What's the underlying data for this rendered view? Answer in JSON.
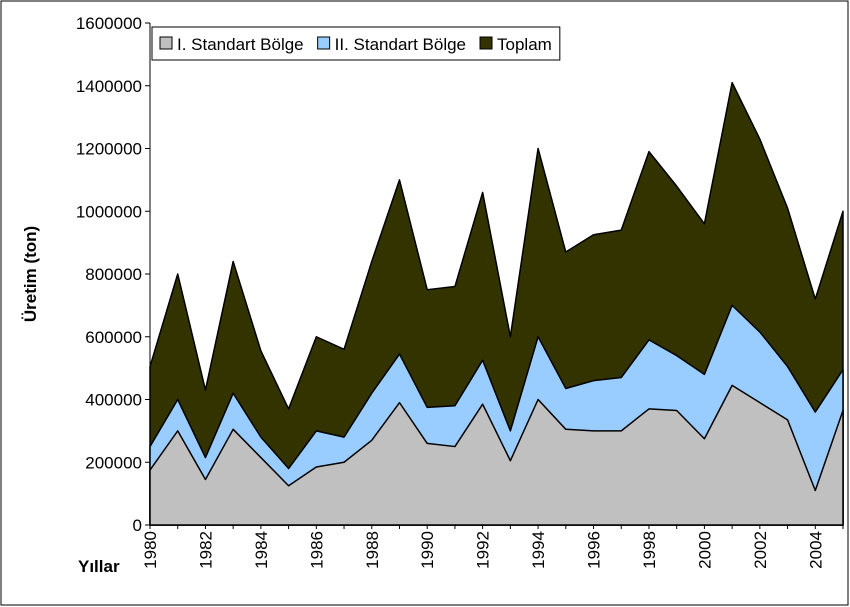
{
  "chart_data": {
    "type": "area",
    "x": [
      1980,
      1981,
      1982,
      1983,
      1984,
      1985,
      1986,
      1987,
      1988,
      1989,
      1990,
      1991,
      1992,
      1993,
      1994,
      1995,
      1996,
      1997,
      1998,
      1999,
      2000,
      2001,
      2002,
      2003,
      2004,
      2005
    ],
    "xlim": [
      1980,
      2005
    ],
    "xticks": [
      1980,
      1982,
      1984,
      1986,
      1988,
      1990,
      1992,
      1994,
      1996,
      1998,
      2000,
      2002,
      2004
    ],
    "xlabel": "Yıllar",
    "ylabel": "Üretim (ton)",
    "ylim": [
      0,
      1600000
    ],
    "yticks": [
      0,
      200000,
      400000,
      600000,
      800000,
      1000000,
      1200000,
      1400000,
      1600000
    ],
    "legend": "top",
    "series": [
      {
        "name": "I. Standart Bölge",
        "color": "#c0c0c0",
        "values": [
          175000,
          300000,
          145000,
          305000,
          215000,
          125000,
          185000,
          200000,
          270000,
          390000,
          260000,
          250000,
          385000,
          205000,
          400000,
          305000,
          300000,
          300000,
          370000,
          365000,
          275000,
          445000,
          390000,
          335000,
          110000,
          365000
        ]
      },
      {
        "name": "II. Standart Bölge",
        "color": "#99ccff",
        "values": [
          250000,
          400000,
          215000,
          420000,
          280000,
          180000,
          300000,
          280000,
          420000,
          545000,
          375000,
          380000,
          525000,
          300000,
          600000,
          435000,
          460000,
          470000,
          590000,
          540000,
          480000,
          700000,
          615000,
          505000,
          360000,
          495000
        ]
      },
      {
        "name": "Toplam",
        "color": "#333300",
        "values": [
          505000,
          800000,
          430000,
          840000,
          555000,
          370000,
          600000,
          560000,
          840000,
          1100000,
          750000,
          760000,
          1060000,
          600000,
          1200000,
          870000,
          925000,
          940000,
          1190000,
          1080000,
          960000,
          1410000,
          1230000,
          1010000,
          720000,
          1000000
        ]
      }
    ]
  }
}
